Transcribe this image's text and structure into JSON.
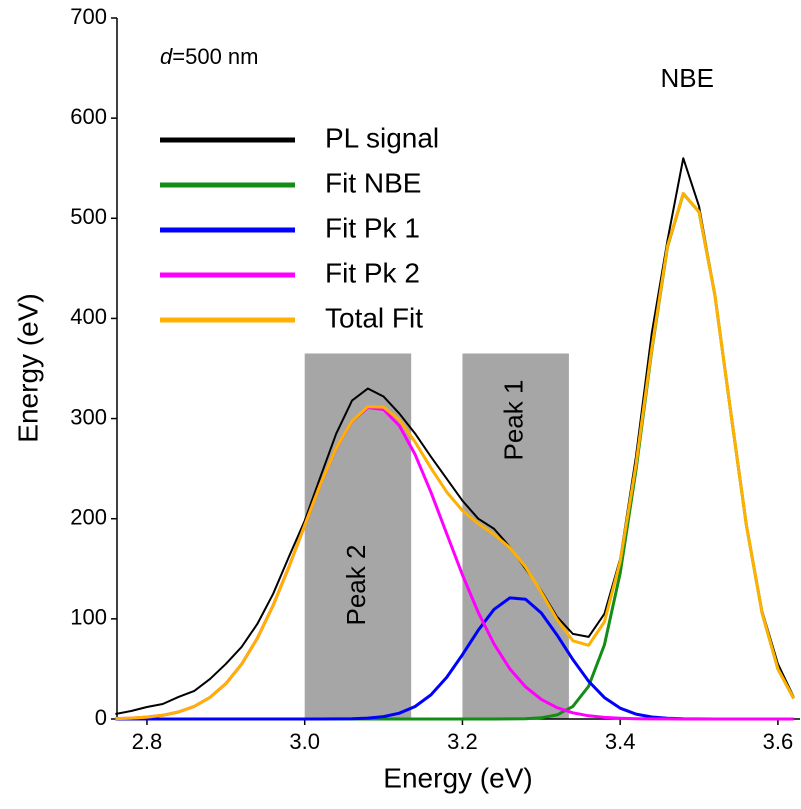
{
  "chart_data": {
    "type": "line",
    "x_label": "Energy (eV)",
    "y_label": "Energy (eV)",
    "annotation": {
      "variable": "d",
      "text": "=500 nm"
    },
    "peak_label": "NBE",
    "regions": [
      {
        "label": "Peak 2",
        "x": [
          3.0,
          3.135
        ],
        "height": 365
      },
      {
        "label": "Peak 1",
        "x": [
          3.2,
          3.335
        ],
        "height": 365
      }
    ],
    "x": [
      2.76,
      2.78,
      2.8,
      2.82,
      2.84,
      2.86,
      2.88,
      2.9,
      2.92,
      2.94,
      2.96,
      2.98,
      3.0,
      3.02,
      3.04,
      3.06,
      3.08,
      3.1,
      3.12,
      3.14,
      3.16,
      3.18,
      3.2,
      3.22,
      3.24,
      3.26,
      3.28,
      3.3,
      3.32,
      3.34,
      3.36,
      3.38,
      3.4,
      3.42,
      3.44,
      3.46,
      3.48,
      3.5,
      3.52,
      3.54,
      3.56,
      3.58,
      3.6,
      3.62
    ],
    "series": [
      {
        "name": "PL signal",
        "color": "#000000",
        "width": 2,
        "values": [
          5,
          8,
          12,
          15,
          22,
          28,
          40,
          55,
          72,
          95,
          125,
          162,
          198,
          242,
          285,
          318,
          330,
          322,
          305,
          285,
          262,
          240,
          218,
          200,
          190,
          172,
          150,
          128,
          102,
          85,
          82,
          105,
          160,
          262,
          385,
          478,
          560,
          512,
          425,
          305,
          192,
          108,
          55,
          22
        ]
      },
      {
        "name": "Fit NBE",
        "color": "#138d13",
        "width": 3,
        "values": [
          0,
          0,
          0,
          0,
          0,
          0,
          0,
          0,
          0,
          0,
          0,
          0,
          0,
          0,
          0,
          0,
          0,
          0,
          0,
          0,
          0,
          0,
          0,
          0,
          0,
          0.1,
          0.3,
          1.2,
          4.1,
          12.5,
          32.7,
          74.0,
          145.7,
          248.4,
          367.6,
          471.5,
          524.6,
          506.4,
          423.8,
          307.6,
          193.6,
          105.8,
          50.0,
          20.6
        ]
      },
      {
        "name": "Fit Pk 1",
        "color": "#0000ff",
        "width": 3,
        "values": [
          0,
          0,
          0,
          0,
          0,
          0,
          0,
          0,
          0,
          0,
          0,
          0,
          0,
          0,
          0.1,
          0.3,
          0.9,
          2.4,
          5.8,
          12.5,
          24.1,
          41.6,
          64.2,
          88.6,
          109.4,
          120.9,
          119.6,
          105.8,
          83.8,
          59.4,
          37.7,
          21.4,
          10.8,
          4.9,
          2.0,
          0.7,
          0.2,
          0.1,
          0,
          0,
          0,
          0,
          0,
          0
        ]
      },
      {
        "name": "Fit Pk 2",
        "color": "#ff00ff",
        "width": 3,
        "values": [
          0.4,
          0.9,
          1.9,
          3.7,
          7.0,
          12.6,
          21.6,
          35.3,
          54.7,
          80.7,
          113.5,
          151.9,
          193.4,
          234.6,
          270.6,
          297.3,
          311,
          309,
          292.9,
          264.1,
          226.6,
          185.1,
          143.9,
          106.5,
          75.0,
          50.2,
          32.1,
          19.5,
          11.3,
          6.2,
          3.2,
          1.6,
          0.8,
          0.3,
          0.1,
          0.1,
          0,
          0,
          0,
          0,
          0,
          0,
          0,
          0
        ]
      },
      {
        "name": "Total Fit",
        "color": "#ffb000",
        "width": 3,
        "values": [
          0.4,
          0.9,
          1.9,
          3.7,
          7.0,
          12.6,
          21.6,
          35.3,
          54.7,
          80.7,
          113.5,
          151.9,
          193.4,
          234.6,
          270.7,
          297.6,
          311.9,
          311.4,
          298.7,
          276.6,
          250.7,
          226.7,
          208.1,
          195.1,
          184.4,
          171.2,
          152.0,
          126.5,
          99.2,
          78.1,
          73.6,
          97.0,
          157.3,
          253.6,
          369.7,
          472.3,
          524.8,
          506.5,
          423.8,
          307.6,
          193.6,
          105.8,
          50.0,
          20.6
        ]
      }
    ],
    "xlim": [
      2.762,
      3.628
    ],
    "xticks": [
      2.8,
      {
        "value": 3,
        "label": "3.0"
      },
      3.2,
      3.4,
      3.6
    ],
    "ylim": [
      0,
      700
    ],
    "yticks": [
      0,
      100,
      200,
      300,
      400,
      500,
      600,
      700
    ],
    "legend": "upper left",
    "grid": false
  }
}
